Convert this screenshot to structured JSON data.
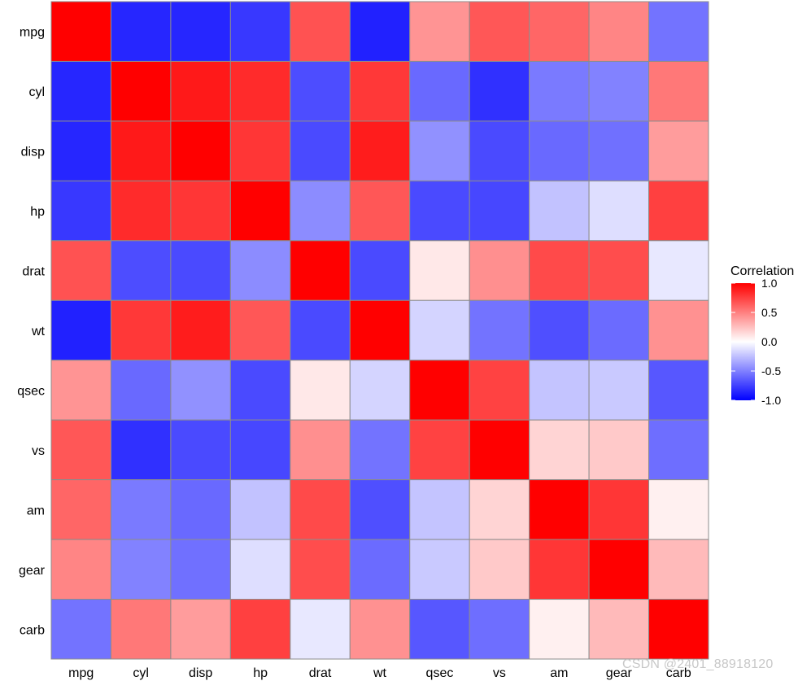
{
  "chart_data": {
    "type": "heatmap",
    "variables": [
      "mpg",
      "cyl",
      "disp",
      "hp",
      "drat",
      "wt",
      "qsec",
      "vs",
      "am",
      "gear",
      "carb"
    ],
    "matrix": [
      [
        1.0,
        -0.85,
        -0.85,
        -0.78,
        0.68,
        -0.87,
        0.42,
        0.66,
        0.6,
        0.48,
        -0.55
      ],
      [
        -0.85,
        1.0,
        0.9,
        0.83,
        -0.7,
        0.78,
        -0.59,
        -0.81,
        -0.52,
        -0.49,
        0.53
      ],
      [
        -0.85,
        0.9,
        1.0,
        0.79,
        -0.71,
        0.89,
        -0.43,
        -0.71,
        -0.59,
        -0.56,
        0.39
      ],
      [
        -0.78,
        0.83,
        0.79,
        1.0,
        -0.45,
        0.66,
        -0.71,
        -0.72,
        -0.24,
        -0.13,
        0.75
      ],
      [
        0.68,
        -0.7,
        -0.71,
        -0.45,
        1.0,
        -0.71,
        0.09,
        0.44,
        0.71,
        0.7,
        -0.09
      ],
      [
        -0.87,
        0.78,
        0.89,
        0.66,
        -0.71,
        1.0,
        -0.17,
        -0.55,
        -0.69,
        -0.58,
        0.43
      ],
      [
        0.42,
        -0.59,
        -0.43,
        -0.71,
        0.09,
        -0.17,
        1.0,
        0.74,
        -0.23,
        -0.21,
        -0.66
      ],
      [
        0.66,
        -0.81,
        -0.71,
        -0.72,
        0.44,
        -0.55,
        0.74,
        1.0,
        0.17,
        0.21,
        -0.57
      ],
      [
        0.6,
        -0.52,
        -0.59,
        -0.24,
        0.71,
        -0.69,
        -0.23,
        0.17,
        1.0,
        0.79,
        0.06
      ],
      [
        0.48,
        -0.49,
        -0.56,
        -0.13,
        0.7,
        -0.58,
        -0.21,
        0.21,
        0.79,
        1.0,
        0.27
      ],
      [
        -0.55,
        0.53,
        0.39,
        0.75,
        -0.09,
        0.43,
        -0.66,
        -0.57,
        0.06,
        0.27,
        1.0
      ]
    ],
    "color_scale": {
      "low": "#0000FF",
      "mid": "#FFFFFF",
      "high": "#FF0000",
      "limits": [
        -1,
        1
      ]
    },
    "legend": {
      "title": "Correlation",
      "ticks": [
        "1.0",
        "0.5",
        "0.0",
        "-0.5",
        "-1.0"
      ],
      "tick_values": [
        1,
        0.5,
        0,
        -0.5,
        -1
      ],
      "position": "right"
    },
    "grid": false
  },
  "watermark": "CSDN @2401_88918120",
  "colors": {
    "cell_border": "#8c8c8c",
    "panel_border": "#8c8c8c",
    "background": "#ffffff"
  }
}
